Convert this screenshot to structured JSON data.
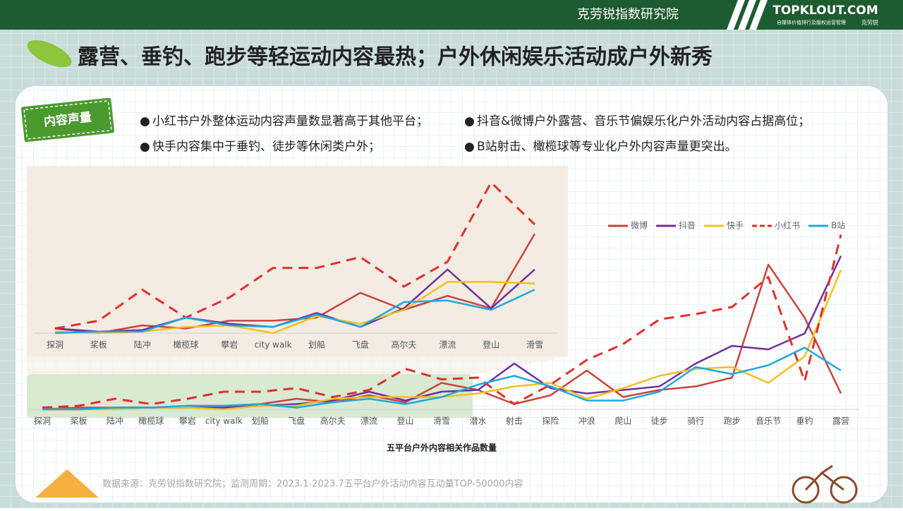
{
  "header": {
    "org": "克劳锐指数研究院",
    "logo": "TOPKLOUT.COM",
    "logo_sub": "自媒体价值排行及版权运营管理",
    "logo_tag": "克劳锐"
  },
  "title": "露营、垂钓、跑步等轻运动内容最热；户外休闲娱乐活动成户外新秀",
  "badge": "内容声量",
  "bullets": [
    "小红书户外整体运动内容声量数显著高于其他平台；",
    "快手内容集中于垂钓、徒步等休闲类户外；",
    "抖音&微博户外露营、音乐节偏娱乐化户外活动内容占据高位；",
    "B站射击、橄榄球等专业化户外内容声量更突出。"
  ],
  "source": "数据来源：克劳锐指数研究院；监测周期：2023.1-2023.7五平台户外活动内容互动量TOP-50000内容",
  "chart_data": [
    {
      "type": "line",
      "x_label": "五平台户外内容相关作品数量",
      "categories": [
        "探洞",
        "桨板",
        "陆冲",
        "橄榄球",
        "攀岩",
        "city walk",
        "划船",
        "飞盘",
        "高尔夫",
        "漂流",
        "登山",
        "滑雪",
        "潜水",
        "射击",
        "探险",
        "冲浪",
        "爬山",
        "徒步",
        "骑行",
        "跑步",
        "音乐节",
        "垂钓",
        "露营"
      ],
      "ylim": [
        0,
        100
      ],
      "legend": "top-right",
      "series": [
        {
          "name": "微博",
          "color": "#c9443a",
          "values": [
            0,
            1,
            1,
            1,
            2,
            2,
            3,
            6,
            4,
            8,
            4,
            15,
            11,
            3,
            8,
            22,
            7,
            11,
            13,
            18,
            82,
            52,
            9
          ]
        },
        {
          "name": "抖音",
          "color": "#7030a0",
          "values": [
            0,
            0,
            1,
            1,
            1,
            1,
            2,
            3,
            5,
            10,
            5,
            10,
            11,
            26,
            12,
            9,
            11,
            13,
            26,
            36,
            34,
            43,
            87
          ]
        },
        {
          "name": "快手",
          "color": "#f2c01e",
          "values": [
            0,
            0,
            0,
            1,
            1,
            0,
            2,
            2,
            6,
            7,
            7,
            7,
            9,
            13,
            15,
            6,
            12,
            19,
            23,
            24,
            15,
            30,
            79
          ]
        },
        {
          "name": "小红书",
          "color": "#e0302a",
          "dashed": true,
          "values": [
            1,
            2,
            6,
            3,
            6,
            10,
            10,
            12,
            7,
            11,
            23,
            17,
            18,
            3,
            14,
            28,
            37,
            51,
            54,
            58,
            75,
            16,
            99
          ]
        },
        {
          "name": "B站",
          "color": "#1fa8e0",
          "values": [
            0,
            0,
            1,
            1,
            2,
            2,
            3,
            1,
            4,
            6,
            3,
            7,
            14,
            19,
            13,
            5,
            5,
            10,
            24,
            20,
            25,
            35,
            22
          ]
        }
      ]
    },
    {
      "type": "line",
      "categories": [
        "探洞",
        "桨板",
        "陆冲",
        "橄榄球",
        "攀岩",
        "city walk",
        "划船",
        "飞盘",
        "高尔夫",
        "漂流",
        "登山",
        "滑雪"
      ],
      "ylim": [
        0,
        100
      ],
      "series": [
        {
          "color": "#c9443a",
          "values": [
            3,
            0,
            5,
            3,
            8,
            8,
            10,
            26,
            15,
            24,
            16,
            64
          ]
        },
        {
          "color": "#7030a0",
          "values": [
            3,
            1,
            2,
            10,
            6,
            4,
            13,
            4,
            16,
            41,
            16,
            41
          ]
        },
        {
          "color": "#f2c01e",
          "values": [
            1,
            0,
            1,
            4,
            5,
            0,
            11,
            6,
            15,
            33,
            33,
            32
          ]
        },
        {
          "color": "#e0302a",
          "dashed": true,
          "values": [
            3,
            8,
            28,
            10,
            23,
            42,
            42,
            49,
            30,
            46,
            97,
            70
          ]
        },
        {
          "color": "#1fa8e0",
          "values": [
            0,
            1,
            1,
            10,
            5,
            4,
            12,
            4,
            20,
            21,
            15,
            28
          ]
        }
      ]
    }
  ]
}
